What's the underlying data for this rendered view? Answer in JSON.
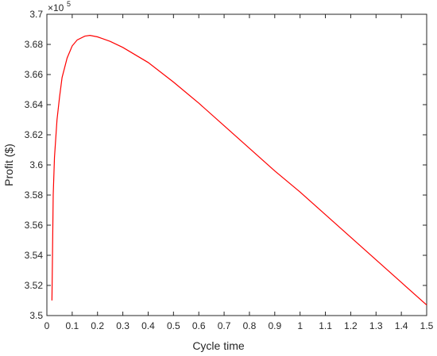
{
  "chart_data": {
    "type": "line",
    "x_label": "Cycle time",
    "y_label": "Profit ($)",
    "y_exponent": {
      "base": "×10",
      "power": "5"
    },
    "x": [
      0.02,
      0.025,
      0.03,
      0.04,
      0.05,
      0.06,
      0.08,
      0.1,
      0.12,
      0.15,
      0.17,
      0.2,
      0.25,
      0.3,
      0.4,
      0.5,
      0.6,
      0.7,
      0.8,
      0.9,
      1.0,
      1.1,
      1.2,
      1.3,
      1.4,
      1.5
    ],
    "series": [
      {
        "color": "#ff0000",
        "values": [
          3.51,
          3.58,
          3.605,
          3.63,
          3.645,
          3.658,
          3.671,
          3.679,
          3.683,
          3.6855,
          3.686,
          3.685,
          3.682,
          3.678,
          3.668,
          3.655,
          3.641,
          3.626,
          3.611,
          3.596,
          3.582,
          3.567,
          3.552,
          3.537,
          3.522,
          3.507
        ]
      }
    ],
    "xlim": [
      0,
      1.5
    ],
    "xticks": [
      0,
      0.1,
      0.2,
      0.3,
      0.4,
      0.5,
      0.6,
      0.7,
      0.8,
      0.9,
      1,
      1.1,
      1.2,
      1.3,
      1.4,
      1.5
    ],
    "ylim": [
      3.5,
      3.7
    ],
    "yticks": [
      3.5,
      3.52,
      3.54,
      3.56,
      3.58,
      3.6,
      3.62,
      3.64,
      3.66,
      3.68,
      3.7
    ],
    "grid": false
  }
}
